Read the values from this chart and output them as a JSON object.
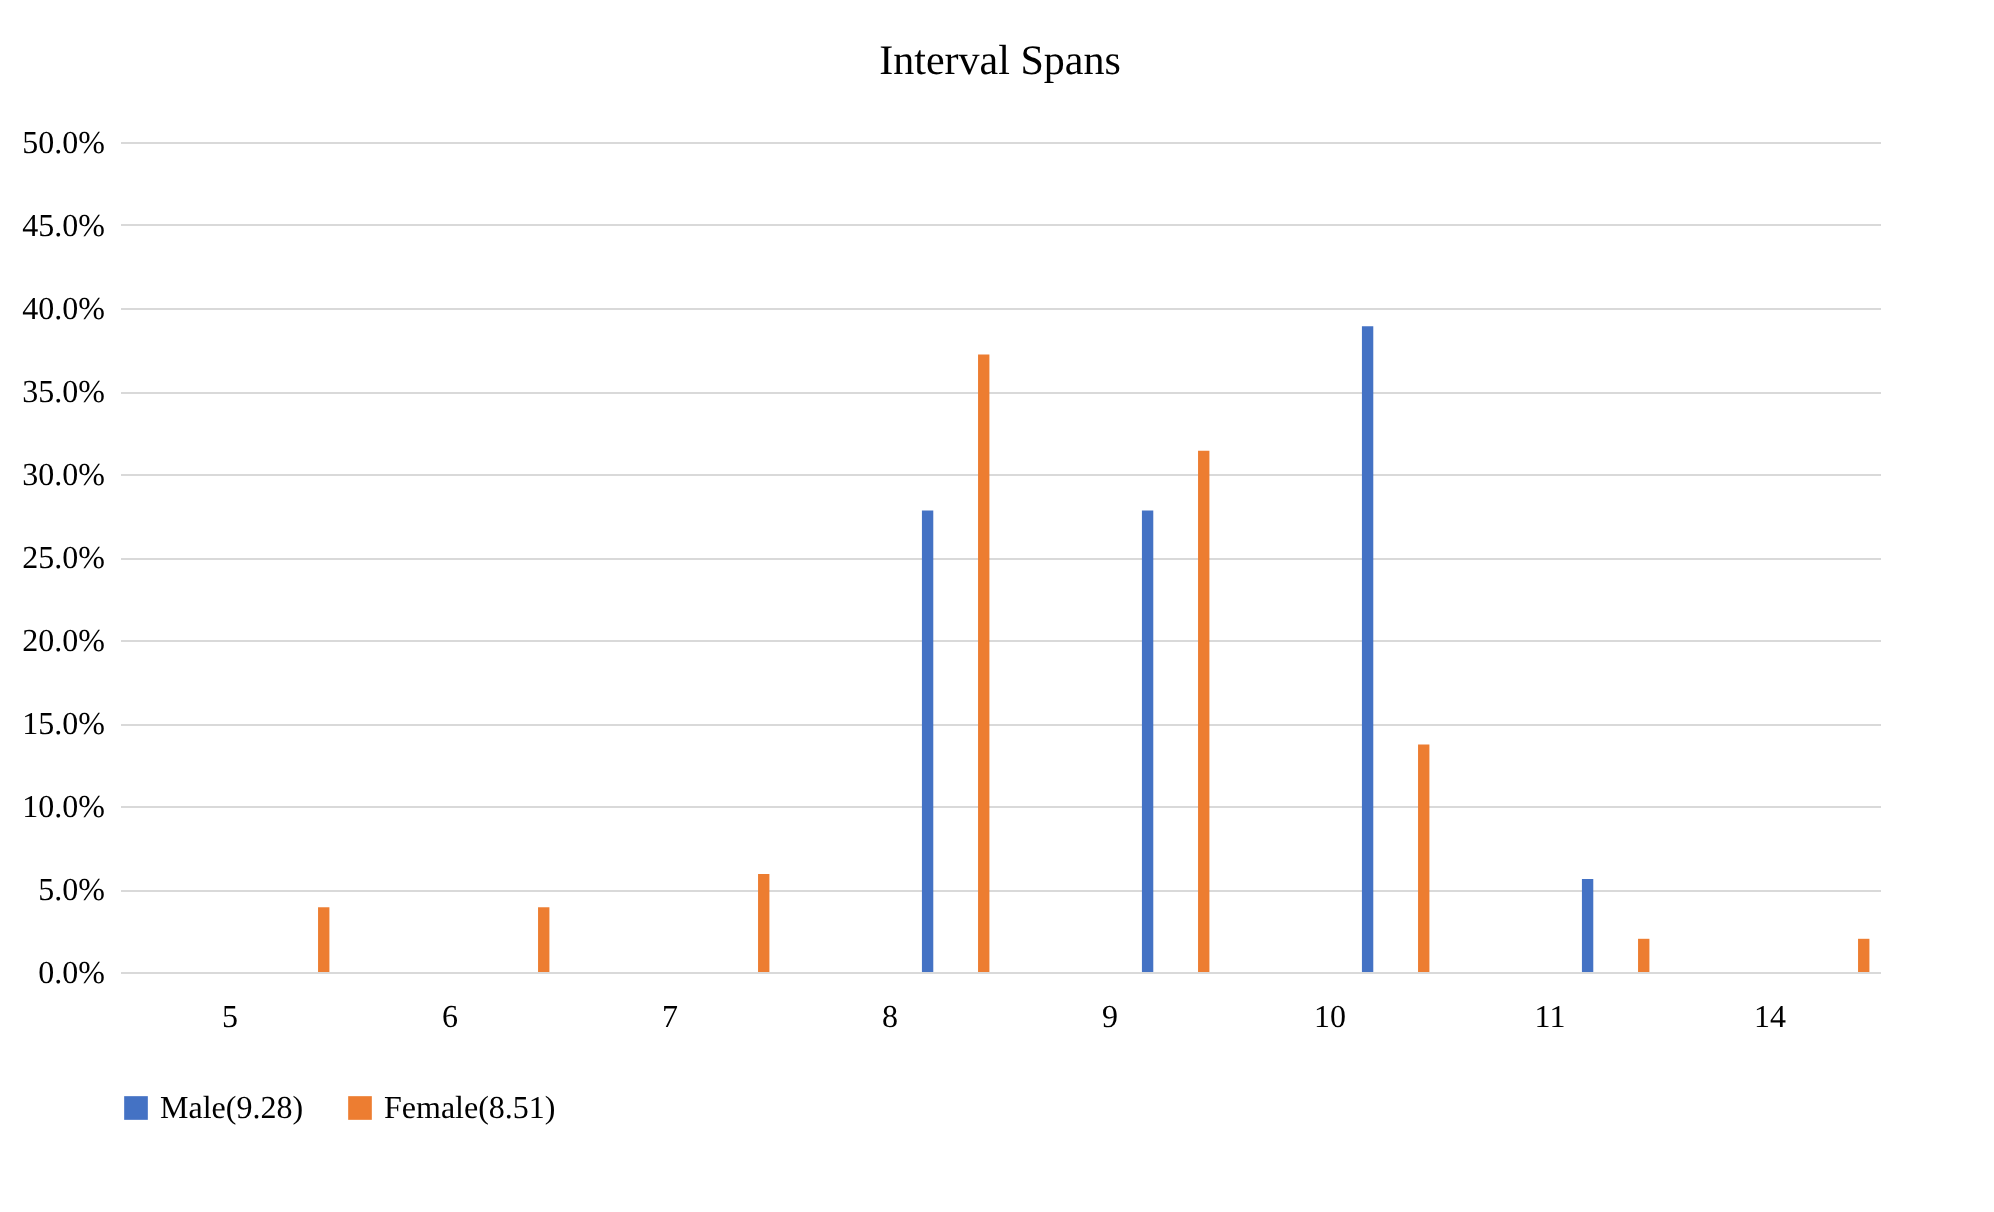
{
  "chart_data": {
    "type": "bar",
    "title": "Interval Spans",
    "categories": [
      "5",
      "6",
      "7",
      "8",
      "9",
      "10",
      "11",
      "14"
    ],
    "series": [
      {
        "name": "Male(9.28)",
        "color": "#4472c4",
        "values": [
          null,
          null,
          null,
          27.8,
          27.8,
          38.9,
          5.6,
          null
        ]
      },
      {
        "name": "Female(8.51)",
        "color": "#ed7d31",
        "values": [
          3.9,
          3.9,
          5.9,
          37.2,
          31.4,
          13.7,
          2.0,
          2.0
        ]
      }
    ],
    "ylim": [
      0,
      50
    ],
    "yticks": [
      {
        "value": 0,
        "label": "0.0%"
      },
      {
        "value": 5,
        "label": "5.0%"
      },
      {
        "value": 10,
        "label": "10.0%"
      },
      {
        "value": 15,
        "label": "15.0%"
      },
      {
        "value": 20,
        "label": "20.0%"
      },
      {
        "value": 25,
        "label": "25.0%"
      },
      {
        "value": 30,
        "label": "30.0%"
      },
      {
        "value": 35,
        "label": "35.0%"
      },
      {
        "value": 40,
        "label": "40.0%"
      },
      {
        "value": 45,
        "label": "45.0%"
      },
      {
        "value": 50,
        "label": "50.0%"
      }
    ],
    "grid": "y",
    "legend": "bottom"
  }
}
